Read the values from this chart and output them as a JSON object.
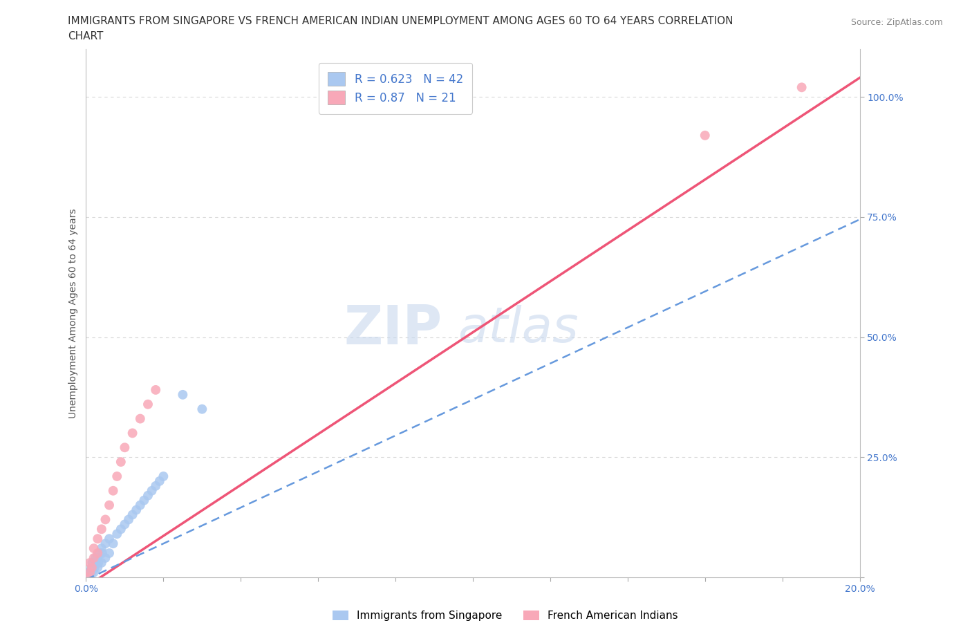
{
  "title": "IMMIGRANTS FROM SINGAPORE VS FRENCH AMERICAN INDIAN UNEMPLOYMENT AMONG AGES 60 TO 64 YEARS CORRELATION\nCHART",
  "source": "Source: ZipAtlas.com",
  "ylabel": "Unemployment Among Ages 60 to 64 years",
  "xlim": [
    0.0,
    0.2
  ],
  "ylim": [
    0.0,
    1.1
  ],
  "blue_color": "#aac8f0",
  "pink_color": "#f8a8b8",
  "blue_line_color": "#6699dd",
  "pink_line_color": "#ee5577",
  "blue_line_slope": 3.75,
  "blue_line_intercept": -0.005,
  "pink_line_slope": 5.3,
  "pink_line_intercept": -0.02,
  "R_blue": 0.623,
  "N_blue": 42,
  "R_pink": 0.87,
  "N_pink": 21,
  "watermark_zip": "ZIP",
  "watermark_atlas": "atlas",
  "watermark_color": "#c8d8f0",
  "grid_color": "#d8d8d8",
  "background_color": "#ffffff",
  "title_fontsize": 11,
  "axis_label_fontsize": 10,
  "tick_fontsize": 10,
  "legend_fontsize": 12,
  "blue_scatter_x": [
    0.0002,
    0.0005,
    0.0008,
    0.001,
    0.001,
    0.0012,
    0.0014,
    0.0015,
    0.0016,
    0.0018,
    0.002,
    0.002,
    0.0022,
    0.0024,
    0.0025,
    0.003,
    0.003,
    0.0032,
    0.0035,
    0.004,
    0.004,
    0.0042,
    0.005,
    0.005,
    0.006,
    0.006,
    0.007,
    0.008,
    0.009,
    0.01,
    0.011,
    0.012,
    0.013,
    0.014,
    0.015,
    0.016,
    0.017,
    0.018,
    0.019,
    0.02,
    0.025,
    0.03
  ],
  "blue_scatter_y": [
    0.0,
    0.0,
    0.01,
    0.0,
    0.01,
    0.0,
    0.02,
    0.01,
    0.03,
    0.02,
    0.01,
    0.03,
    0.02,
    0.04,
    0.03,
    0.02,
    0.04,
    0.03,
    0.05,
    0.03,
    0.06,
    0.05,
    0.04,
    0.07,
    0.05,
    0.08,
    0.07,
    0.09,
    0.1,
    0.11,
    0.12,
    0.13,
    0.14,
    0.15,
    0.16,
    0.17,
    0.18,
    0.19,
    0.2,
    0.21,
    0.38,
    0.35
  ],
  "pink_scatter_x": [
    0.0005,
    0.001,
    0.001,
    0.0015,
    0.002,
    0.002,
    0.003,
    0.003,
    0.004,
    0.005,
    0.006,
    0.007,
    0.008,
    0.009,
    0.01,
    0.012,
    0.014,
    0.016,
    0.018,
    0.16,
    0.185
  ],
  "pink_scatter_y": [
    0.0,
    0.01,
    0.03,
    0.02,
    0.04,
    0.06,
    0.05,
    0.08,
    0.1,
    0.12,
    0.15,
    0.18,
    0.21,
    0.24,
    0.27,
    0.3,
    0.33,
    0.36,
    0.39,
    0.92,
    1.02
  ]
}
